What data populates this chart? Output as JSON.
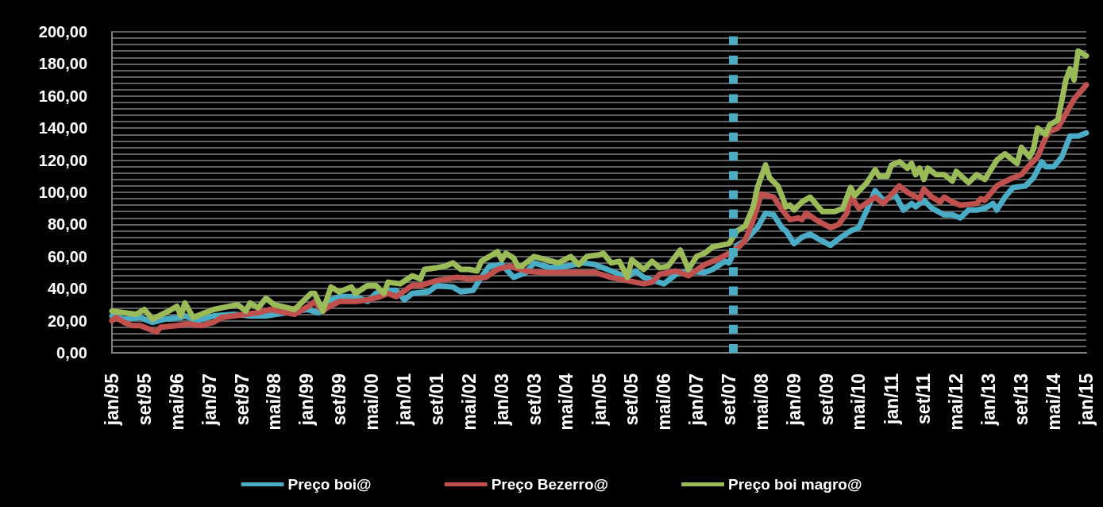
{
  "chart_data": {
    "type": "line",
    "xlim": [
      "1995-01",
      "2015-01"
    ],
    "xticks": [
      {
        "value": "1995-01",
        "label": "jan/95"
      },
      {
        "value": "1995-09",
        "label": "set/95"
      },
      {
        "value": "1996-05",
        "label": "mai/96"
      },
      {
        "value": "1997-01",
        "label": "jan/97"
      },
      {
        "value": "1997-09",
        "label": "set/97"
      },
      {
        "value": "1998-05",
        "label": "mai/98"
      },
      {
        "value": "1999-01",
        "label": "jan/99"
      },
      {
        "value": "1999-09",
        "label": "set/99"
      },
      {
        "value": "2000-05",
        "label": "mai/00"
      },
      {
        "value": "2001-01",
        "label": "jan/01"
      },
      {
        "value": "2001-09",
        "label": "set/01"
      },
      {
        "value": "2002-05",
        "label": "mai/02"
      },
      {
        "value": "2003-01",
        "label": "jan/03"
      },
      {
        "value": "2003-09",
        "label": "set/03"
      },
      {
        "value": "2004-05",
        "label": "mai/04"
      },
      {
        "value": "2005-01",
        "label": "jan/05"
      },
      {
        "value": "2005-09",
        "label": "set/05"
      },
      {
        "value": "2006-05",
        "label": "mai/06"
      },
      {
        "value": "2007-01",
        "label": "jan/07"
      },
      {
        "value": "2007-09",
        "label": "set/07"
      },
      {
        "value": "2008-05",
        "label": "mai/08"
      },
      {
        "value": "2009-01",
        "label": "jan/09"
      },
      {
        "value": "2009-09",
        "label": "set/09"
      },
      {
        "value": "2010-05",
        "label": "mai/10"
      },
      {
        "value": "2011-01",
        "label": "jan/11"
      },
      {
        "value": "2011-09",
        "label": "set/11"
      },
      {
        "value": "2012-05",
        "label": "mai/12"
      },
      {
        "value": "2013-01",
        "label": "jan/13"
      },
      {
        "value": "2013-09",
        "label": "set/13"
      },
      {
        "value": "2014-05",
        "label": "mai/14"
      },
      {
        "value": "2015-01",
        "label": "jan/15"
      }
    ],
    "ylim": [
      0,
      200
    ],
    "yticks": [
      {
        "value": 0,
        "label": "0,00"
      },
      {
        "value": 4,
        "label": null
      },
      {
        "value": 8,
        "label": null
      },
      {
        "value": 12,
        "label": null
      },
      {
        "value": 16,
        "label": null
      },
      {
        "value": 20,
        "label": "20,00"
      },
      {
        "value": 24,
        "label": null
      },
      {
        "value": 28,
        "label": null
      },
      {
        "value": 32,
        "label": null
      },
      {
        "value": 36,
        "label": null
      },
      {
        "value": 40,
        "label": "40,00"
      },
      {
        "value": 44,
        "label": null
      },
      {
        "value": 48,
        "label": null
      },
      {
        "value": 52,
        "label": null
      },
      {
        "value": 56,
        "label": null
      },
      {
        "value": 60,
        "label": "60,00"
      },
      {
        "value": 64,
        "label": null
      },
      {
        "value": 68,
        "label": null
      },
      {
        "value": 72,
        "label": null
      },
      {
        "value": 76,
        "label": null
      },
      {
        "value": 80,
        "label": "80,00"
      },
      {
        "value": 84,
        "label": null
      },
      {
        "value": 88,
        "label": null
      },
      {
        "value": 92,
        "label": null
      },
      {
        "value": 96,
        "label": null
      },
      {
        "value": 100,
        "label": "100,00"
      },
      {
        "value": 104,
        "label": null
      },
      {
        "value": 108,
        "label": null
      },
      {
        "value": 112,
        "label": null
      },
      {
        "value": 116,
        "label": null
      },
      {
        "value": 120,
        "label": "120,00"
      },
      {
        "value": 124,
        "label": null
      },
      {
        "value": 128,
        "label": null
      },
      {
        "value": 132,
        "label": null
      },
      {
        "value": 136,
        "label": null
      },
      {
        "value": 140,
        "label": "140,00"
      },
      {
        "value": 144,
        "label": null
      },
      {
        "value": 148,
        "label": null
      },
      {
        "value": 152,
        "label": null
      },
      {
        "value": 156,
        "label": null
      },
      {
        "value": 160,
        "label": "160,00"
      },
      {
        "value": 164,
        "label": null
      },
      {
        "value": 168,
        "label": null
      },
      {
        "value": 172,
        "label": null
      },
      {
        "value": 176,
        "label": null
      },
      {
        "value": 180,
        "label": "180,00"
      },
      {
        "value": 184,
        "label": null
      },
      {
        "value": 188,
        "label": null
      },
      {
        "value": 192,
        "label": null
      },
      {
        "value": 196,
        "label": null
      },
      {
        "value": 200,
        "label": "200,00"
      }
    ],
    "grid": "y",
    "legend": "bottom",
    "ref_lines": [
      {
        "axis": "x",
        "value": "2007-10",
        "color": "#4bacc6",
        "line_style": "dashed"
      }
    ],
    "series": [
      {
        "name": "Preço boi@",
        "color": "#4bacc6",
        "x": [
          "1995-01",
          "1995-04",
          "1995-08",
          "1995-11",
          "1996-02",
          "1996-06",
          "1996-07",
          "1996-10",
          "1997-02",
          "1997-07",
          "1997-11",
          "1998-03",
          "1998-08",
          "1999-01",
          "1999-04",
          "1999-06",
          "1999-09",
          "2000-01",
          "2000-04",
          "2000-06",
          "2000-09",
          "2000-11",
          "2001-01",
          "2001-03",
          "2001-07",
          "2001-09",
          "2002-01",
          "2002-03",
          "2002-06",
          "2002-08",
          "2002-10",
          "2003-01",
          "2003-04",
          "2003-07",
          "2003-09",
          "2004-01",
          "2004-05",
          "2004-09",
          "2004-12",
          "2005-04",
          "2005-08",
          "2005-10",
          "2005-12",
          "2006-05",
          "2006-08",
          "2006-11",
          "2007-03",
          "2007-05",
          "2007-08",
          "2007-09",
          "2007-11",
          "2008-01",
          "2008-04",
          "2008-06",
          "2008-08",
          "2008-10",
          "2008-11",
          "2009-01",
          "2009-03",
          "2009-05",
          "2009-07",
          "2009-10",
          "2009-12",
          "2010-03",
          "2010-05",
          "2010-07",
          "2010-09",
          "2010-11",
          "2011-02",
          "2011-04",
          "2011-06",
          "2011-07",
          "2011-09",
          "2011-11",
          "2012-02",
          "2012-04",
          "2012-06",
          "2012-08",
          "2012-10",
          "2012-12",
          "2013-02",
          "2013-03",
          "2013-05",
          "2013-07",
          "2013-10",
          "2013-12",
          "2014-02",
          "2014-03",
          "2014-05",
          "2014-07",
          "2014-09",
          "2014-11",
          "2015-01"
        ],
        "values": [
          23,
          21,
          22,
          19,
          21,
          22,
          23,
          20,
          23,
          24,
          23,
          23,
          25,
          27,
          25,
          32,
          35,
          35,
          32,
          37,
          39,
          39,
          33,
          37,
          38,
          42,
          41,
          38,
          39,
          47,
          54,
          55,
          47,
          50,
          56,
          53,
          54,
          56,
          55,
          51,
          47,
          51,
          47,
          43,
          49,
          51,
          50,
          52,
          57,
          56,
          67,
          70,
          78,
          87,
          86,
          78,
          76,
          68,
          72,
          74,
          71,
          67,
          71,
          76,
          78,
          89,
          101,
          95,
          98,
          89,
          93,
          91,
          95,
          90,
          86,
          86,
          84,
          89,
          89,
          90,
          93,
          89,
          97,
          103,
          104,
          109,
          119,
          116,
          116,
          122,
          135,
          135,
          137
        ]
      },
      {
        "name": "Preço Bezerro@",
        "color": "#c0504d",
        "x": [
          "1995-01",
          "1995-02",
          "1995-04",
          "1995-06",
          "1995-08",
          "1995-11",
          "1995-12",
          "1996-01",
          "1996-05",
          "1996-08",
          "1996-11",
          "1997-02",
          "1997-04",
          "1997-07",
          "1997-10",
          "1998-01",
          "1998-04",
          "1998-08",
          "1998-10",
          "1999-02",
          "1999-03",
          "1999-05",
          "1999-06",
          "1999-09",
          "2000-01",
          "2000-04",
          "2000-07",
          "2000-09",
          "2000-11",
          "2001-03",
          "2001-05",
          "2001-09",
          "2002-02",
          "2002-05",
          "2002-09",
          "2002-12",
          "2003-03",
          "2003-07",
          "2003-11",
          "2004-06",
          "2004-12",
          "2005-04",
          "2005-08",
          "2005-12",
          "2006-02",
          "2006-04",
          "2006-08",
          "2006-11",
          "2007-03",
          "2007-06",
          "2007-09",
          "2007-11",
          "2008-01",
          "2008-03",
          "2008-05",
          "2008-08",
          "2008-09",
          "2008-11",
          "2008-12",
          "2009-02",
          "2009-03",
          "2009-04",
          "2009-07",
          "2009-10",
          "2009-12",
          "2010-02",
          "2010-03",
          "2010-05",
          "2010-09",
          "2010-11",
          "2011-03",
          "2011-05",
          "2011-08",
          "2011-09",
          "2011-11",
          "2012-01",
          "2012-02",
          "2012-04",
          "2012-06",
          "2012-10",
          "2012-11",
          "2012-12",
          "2013-03",
          "2013-06",
          "2013-09",
          "2013-11",
          "2014-01",
          "2014-03",
          "2014-04",
          "2014-06",
          "2014-08",
          "2014-10",
          "2015-01"
        ],
        "values": [
          20,
          22,
          19,
          17,
          17,
          14,
          13,
          16,
          17,
          18,
          17,
          19,
          22,
          23,
          24,
          25,
          27,
          25,
          24,
          30,
          32,
          26,
          28,
          32,
          32,
          33,
          35,
          37,
          35,
          42,
          42,
          45,
          47,
          46,
          47,
          52,
          54,
          51,
          50,
          50,
          50,
          47,
          45,
          43,
          44,
          49,
          51,
          48,
          55,
          58,
          62,
          65,
          70,
          83,
          99,
          97,
          93,
          86,
          83,
          84,
          83,
          87,
          82,
          78,
          80,
          87,
          98,
          90,
          97,
          93,
          104,
          100,
          96,
          102,
          97,
          94,
          97,
          94,
          92,
          93,
          96,
          95,
          104,
          108,
          111,
          117,
          122,
          134,
          138,
          140,
          149,
          158,
          167
        ]
      },
      {
        "name": "Preço boi magro@",
        "color": "#9bbb59",
        "x": [
          "1995-01",
          "1995-04",
          "1995-07",
          "1995-09",
          "1995-11",
          "1996-03",
          "1996-05",
          "1996-06",
          "1996-07",
          "1996-09",
          "1997-02",
          "1997-04",
          "1997-08",
          "1997-10",
          "1997-11",
          "1998-01",
          "1998-03",
          "1998-05",
          "1998-10",
          "1999-02",
          "1999-03",
          "1999-05",
          "1999-07",
          "1999-09",
          "1999-12",
          "2000-01",
          "2000-04",
          "2000-06",
          "2000-08",
          "2000-09",
          "2000-12",
          "2001-03",
          "2001-05",
          "2001-06",
          "2001-09",
          "2001-11",
          "2002-01",
          "2002-03",
          "2002-05",
          "2002-07",
          "2002-08",
          "2002-10",
          "2002-12",
          "2003-01",
          "2003-02",
          "2003-04",
          "2003-05",
          "2003-06",
          "2003-09",
          "2003-12",
          "2004-03",
          "2004-06",
          "2004-08",
          "2004-10",
          "2005-01",
          "2005-02",
          "2005-04",
          "2005-06",
          "2005-08",
          "2005-09",
          "2005-12",
          "2006-02",
          "2006-04",
          "2006-06",
          "2006-09",
          "2006-11",
          "2007-01",
          "2007-03",
          "2007-05",
          "2007-07",
          "2007-09",
          "2007-11",
          "2008-01",
          "2008-03",
          "2008-04",
          "2008-06",
          "2008-07",
          "2008-09",
          "2008-10",
          "2008-11",
          "2008-12",
          "2009-01",
          "2009-03",
          "2009-05",
          "2009-06",
          "2009-08",
          "2009-11",
          "2010-01",
          "2010-03",
          "2010-04",
          "2010-07",
          "2010-09",
          "2010-10",
          "2010-12",
          "2011-01",
          "2011-03",
          "2011-05",
          "2011-06",
          "2011-07",
          "2011-08",
          "2011-09",
          "2011-10",
          "2011-12",
          "2012-02",
          "2012-04",
          "2012-05",
          "2012-08",
          "2012-10",
          "2012-12",
          "2013-03",
          "2013-05",
          "2013-08",
          "2013-09",
          "2013-11",
          "2013-12",
          "2014-01",
          "2014-03",
          "2014-04",
          "2014-06",
          "2014-08",
          "2014-09",
          "2014-10",
          "2014-11",
          "2015-01"
        ],
        "values": [
          26,
          25,
          24,
          27,
          21,
          26,
          29,
          23,
          31,
          22,
          27,
          28,
          30,
          26,
          31,
          28,
          34,
          30,
          27,
          37,
          37,
          26,
          41,
          38,
          41,
          37,
          42,
          42,
          37,
          44,
          43,
          48,
          46,
          52,
          53,
          54,
          56,
          52,
          52,
          51,
          57,
          60,
          63,
          58,
          62,
          59,
          54,
          54,
          60,
          58,
          56,
          60,
          55,
          60,
          61,
          62,
          56,
          57,
          47,
          58,
          52,
          57,
          53,
          54,
          64,
          52,
          60,
          62,
          66,
          67,
          68,
          76,
          79,
          91,
          103,
          117,
          109,
          104,
          98,
          91,
          92,
          89,
          94,
          97,
          94,
          88,
          88,
          90,
          103,
          98,
          106,
          114,
          110,
          110,
          117,
          119,
          115,
          118,
          111,
          115,
          108,
          115,
          111,
          111,
          107,
          113,
          106,
          111,
          108,
          120,
          124,
          118,
          128,
          122,
          127,
          140,
          136,
          142,
          145,
          170,
          177,
          170,
          188,
          185
        ]
      }
    ]
  }
}
